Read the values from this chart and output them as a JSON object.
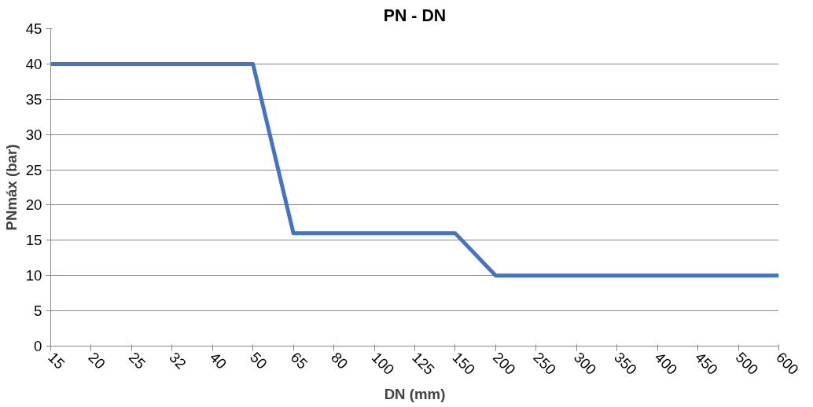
{
  "chart_data": {
    "type": "line",
    "title": "PN - DN",
    "xlabel": "DN (mm)",
    "ylabel": "PNmáx (bar)",
    "categories": [
      "15",
      "20",
      "25",
      "32",
      "40",
      "50",
      "65",
      "80",
      "100",
      "125",
      "150",
      "200",
      "250",
      "300",
      "350",
      "400",
      "450",
      "500",
      "600"
    ],
    "series": [
      {
        "color": "#4472c4",
        "values": [
          40,
          40,
          40,
          40,
          40,
          40,
          16,
          16,
          16,
          16,
          16,
          10,
          10,
          10,
          10,
          10,
          10,
          10,
          10
        ]
      }
    ],
    "ylim": [
      0,
      45
    ],
    "yticks": [
      0,
      5,
      10,
      15,
      20,
      25,
      30,
      35,
      40,
      45
    ],
    "grid": "y",
    "marker": "none",
    "line_style": "solid"
  }
}
